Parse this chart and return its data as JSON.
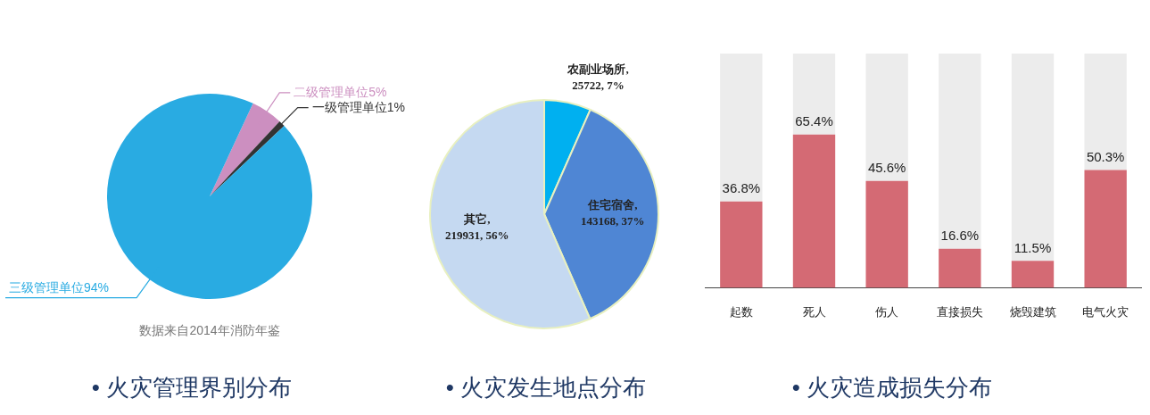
{
  "chart_data": [
    {
      "type": "pie",
      "title": "• 火灾管理界别分布",
      "categories": [
        "二级管理单位",
        "一级管理单位",
        "三级管理单位"
      ],
      "values": [
        5,
        1,
        94
      ],
      "colors": [
        "#cc8fc0",
        "#333333",
        "#29abe2"
      ],
      "value_labels": [
        "5%",
        "1%",
        "94%"
      ],
      "annotations": [
        "数据来自2014年消防年鉴"
      ]
    },
    {
      "type": "pie",
      "title": "• 火灾发生地点分布",
      "categories": [
        "农副业场所",
        "住宅宿舍",
        "其它"
      ],
      "values": [
        25722,
        143168,
        219931
      ],
      "colors": [
        "#00b0f0",
        "#4f86d4",
        "#c5d9f1"
      ],
      "value_labels": [
        ",25722, 7%",
        ",143168, 37%",
        ",219931, 56%"
      ]
    },
    {
      "type": "bar",
      "title": "• 火灾造成损失分布",
      "categories": [
        "起数",
        "死人",
        "伤人",
        "直接损失",
        "烧毁建筑",
        "电气火灾"
      ],
      "ylim": [
        0,
        100
      ],
      "tick_labels": "x",
      "stacked": true,
      "series": [
        {
          "color": "#d46a74",
          "values": [
            36.8,
            65.4,
            45.6,
            16.6,
            11.5,
            50.3
          ],
          "value_labels": [
            "36.8%",
            "65.4%",
            "45.6%",
            "16.6%",
            "11.5%",
            "50.3%"
          ]
        },
        {
          "color": "#ececec",
          "values": [
            63.2,
            34.6,
            54.4,
            83.4,
            88.5,
            49.7
          ]
        }
      ]
    }
  ]
}
